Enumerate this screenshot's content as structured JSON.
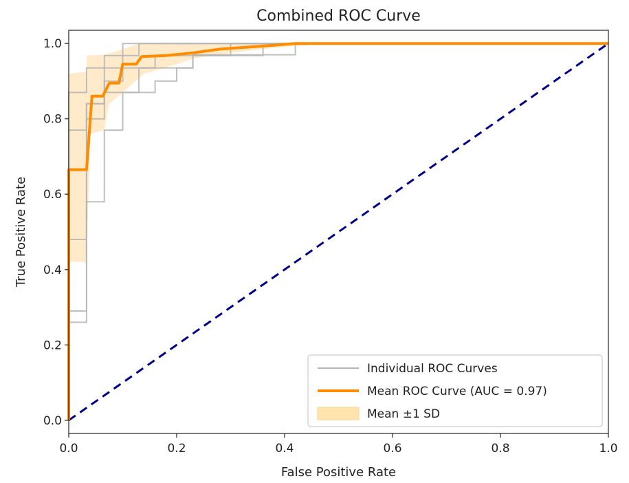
{
  "chart_data": {
    "type": "line",
    "title": "Combined ROC Curve",
    "xlabel": "False Positive Rate",
    "ylabel": "True Positive Rate",
    "xlim": [
      0.0,
      1.0
    ],
    "ylim": [
      0.0,
      1.0
    ],
    "x_ticks": [
      "0.0",
      "0.2",
      "0.4",
      "0.6",
      "0.8",
      "1.0"
    ],
    "y_ticks": [
      "0.0",
      "0.2",
      "0.4",
      "0.6",
      "0.8",
      "1.0"
    ],
    "grid": false,
    "legend_position": "lower-right",
    "legend": [
      {
        "label": "Individual ROC Curves",
        "kind": "line",
        "color": "#b5b5b5"
      },
      {
        "label": "Mean ROC Curve (AUC = 0.97)",
        "kind": "line",
        "color": "#ff8c00"
      },
      {
        "label": "Mean ±1 SD",
        "kind": "patch",
        "color": "#ffe4b0"
      }
    ],
    "colors": {
      "individual": "#b5b5b5",
      "mean": "#ff8c00",
      "band": "#ffd28a",
      "chance": "#00008b"
    },
    "series": [
      {
        "name": "Individual ROC Curves",
        "kind": "individual",
        "points": [
          [
            0,
            0
          ],
          [
            0,
            0.26
          ],
          [
            0.033,
            0.26
          ],
          [
            0.033,
            0.58
          ],
          [
            0.066,
            0.58
          ],
          [
            0.066,
            0.77
          ],
          [
            0.1,
            0.77
          ],
          [
            0.1,
            0.87
          ],
          [
            0.16,
            0.87
          ],
          [
            0.16,
            0.9
          ],
          [
            0.2,
            0.9
          ],
          [
            0.2,
            0.935
          ],
          [
            0.23,
            0.935
          ],
          [
            0.23,
            0.97
          ],
          [
            0.42,
            0.97
          ],
          [
            0.42,
            1.0
          ],
          [
            1.0,
            1.0
          ]
        ]
      },
      {
        "kind": "individual",
        "points": [
          [
            0,
            0
          ],
          [
            0,
            0.29
          ],
          [
            0.033,
            0.29
          ],
          [
            0.033,
            0.8
          ],
          [
            0.066,
            0.8
          ],
          [
            0.066,
            0.87
          ],
          [
            0.13,
            0.87
          ],
          [
            0.13,
            0.935
          ],
          [
            0.23,
            0.935
          ],
          [
            0.23,
            0.968
          ],
          [
            0.36,
            0.968
          ],
          [
            0.36,
            1.0
          ],
          [
            1.0,
            1.0
          ]
        ]
      },
      {
        "kind": "individual",
        "points": [
          [
            0,
            0
          ],
          [
            0,
            0.48
          ],
          [
            0.033,
            0.48
          ],
          [
            0.033,
            0.84
          ],
          [
            0.066,
            0.84
          ],
          [
            0.066,
            0.935
          ],
          [
            0.1,
            0.935
          ],
          [
            0.1,
            0.968
          ],
          [
            0.13,
            0.968
          ],
          [
            0.13,
            1.0
          ],
          [
            1.0,
            1.0
          ]
        ]
      },
      {
        "kind": "individual",
        "points": [
          [
            0,
            0
          ],
          [
            0,
            0.77
          ],
          [
            0.033,
            0.77
          ],
          [
            0.033,
            0.84
          ],
          [
            0.066,
            0.84
          ],
          [
            0.066,
            0.9
          ],
          [
            0.1,
            0.9
          ],
          [
            0.1,
            0.935
          ],
          [
            0.16,
            0.935
          ],
          [
            0.16,
            0.968
          ],
          [
            0.3,
            0.968
          ],
          [
            0.3,
            1.0
          ],
          [
            1.0,
            1.0
          ]
        ]
      },
      {
        "kind": "individual",
        "points": [
          [
            0,
            0
          ],
          [
            0,
            0.87
          ],
          [
            0.033,
            0.87
          ],
          [
            0.033,
            0.935
          ],
          [
            0.066,
            0.935
          ],
          [
            0.066,
            0.968
          ],
          [
            0.1,
            0.968
          ],
          [
            0.1,
            1.0
          ],
          [
            1.0,
            1.0
          ]
        ]
      },
      {
        "name": "Mean ROC Curve (AUC = 0.97)",
        "kind": "mean",
        "points": [
          [
            0,
            0
          ],
          [
            0,
            0.665
          ],
          [
            0.033,
            0.665
          ],
          [
            0.043,
            0.86
          ],
          [
            0.063,
            0.86
          ],
          [
            0.075,
            0.895
          ],
          [
            0.093,
            0.895
          ],
          [
            0.1,
            0.945
          ],
          [
            0.125,
            0.945
          ],
          [
            0.135,
            0.965
          ],
          [
            0.18,
            0.968
          ],
          [
            0.23,
            0.975
          ],
          [
            0.28,
            0.985
          ],
          [
            0.36,
            0.993
          ],
          [
            0.42,
            1.0
          ],
          [
            1.0,
            1.0
          ]
        ]
      }
    ],
    "band": {
      "name": "Mean ±1 SD",
      "upper": [
        [
          0,
          0.42
        ],
        [
          0,
          0.92
        ],
        [
          0.033,
          0.925
        ],
        [
          0.033,
          0.968
        ],
        [
          0.066,
          0.97
        ],
        [
          0.1,
          0.985
        ],
        [
          0.13,
          1.0
        ],
        [
          1.0,
          1.0
        ]
      ],
      "lower": [
        [
          0,
          0.0
        ],
        [
          0,
          0.42
        ],
        [
          0.033,
          0.42
        ],
        [
          0.04,
          0.76
        ],
        [
          0.066,
          0.77
        ],
        [
          0.075,
          0.84
        ],
        [
          0.1,
          0.87
        ],
        [
          0.14,
          0.92
        ],
        [
          0.2,
          0.945
        ],
        [
          0.23,
          0.96
        ],
        [
          0.3,
          0.975
        ],
        [
          0.36,
          0.985
        ],
        [
          0.42,
          0.993
        ],
        [
          0.5,
          1.0
        ],
        [
          1.0,
          1.0
        ]
      ]
    },
    "chance_line": {
      "points": [
        [
          0,
          0
        ],
        [
          1,
          1
        ]
      ]
    }
  }
}
